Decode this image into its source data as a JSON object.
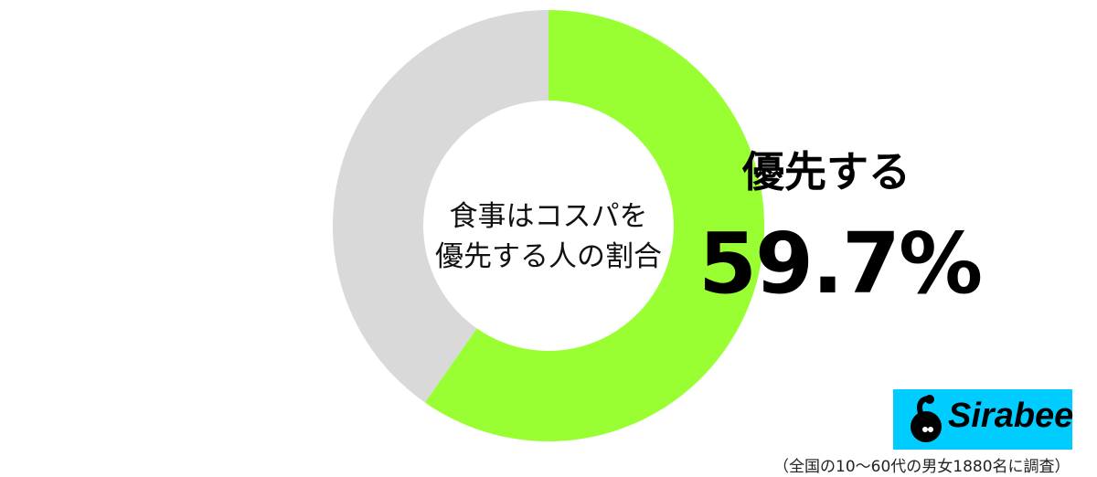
{
  "chart_data": {
    "type": "pie",
    "donut": true,
    "center_title": [
      "食事はコスパを",
      "優先する人の割合"
    ],
    "slices": [
      {
        "label": "優先する",
        "value": 59.7,
        "color": "#99ff33"
      },
      {
        "value": 40.3,
        "color": "#d9d9d9"
      }
    ],
    "highlight": {
      "label": "優先する",
      "value_text": "59.7%"
    }
  },
  "logo": {
    "text": "Sirabee",
    "color": "#00ccff"
  },
  "footnote": "（全国の10〜60代の男女1880名に調査）"
}
